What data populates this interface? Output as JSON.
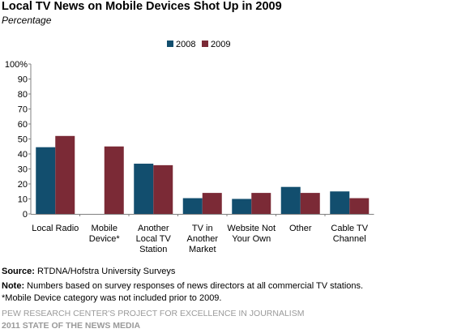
{
  "title": "Local TV News  on Mobile Devices  Shot Up in 2009",
  "subtitle": "Percentage",
  "chart_data": {
    "type": "bar",
    "title": "Local TV News  on Mobile Devices  Shot Up in 2009",
    "subtitle": "Percentage",
    "categories": [
      [
        "Local Radio"
      ],
      [
        "Mobile",
        "Device*"
      ],
      [
        "Another",
        "Local TV",
        "Station"
      ],
      [
        "TV in",
        "Another",
        "Market"
      ],
      [
        "Website Not",
        "Your Own"
      ],
      [
        "Other"
      ],
      [
        "Cable TV",
        "Channel"
      ]
    ],
    "series": [
      {
        "name": "2008",
        "color": "#124e6e",
        "values": [
          44.5,
          null,
          33.5,
          10.5,
          10,
          18,
          15
        ]
      },
      {
        "name": "2009",
        "color": "#7b2a36",
        "values": [
          52,
          45,
          32.5,
          14,
          14,
          14,
          10.5
        ]
      }
    ],
    "ylim": [
      0,
      100
    ],
    "yticks": [
      "0",
      "10",
      "20",
      "30",
      "40",
      "50",
      "60",
      "70",
      "80",
      "90",
      "100%"
    ],
    "legend_position": "top-center",
    "grid": false
  },
  "footer": {
    "source_label": "Source:",
    "source_text": "RTDNA/Hofstra University Surveys",
    "note_label": "Note:",
    "note_text": "Numbers based on survey responses of news directors at all commercial TV stations.",
    "footnote": "*Mobile Device category was not included prior to 2009.",
    "org": "PEW RESEARCH CENTER'S PROJECT FOR EXCELLENCE IN JOURNALISM",
    "report": "2011 STATE OF THE NEWS MEDIA"
  }
}
